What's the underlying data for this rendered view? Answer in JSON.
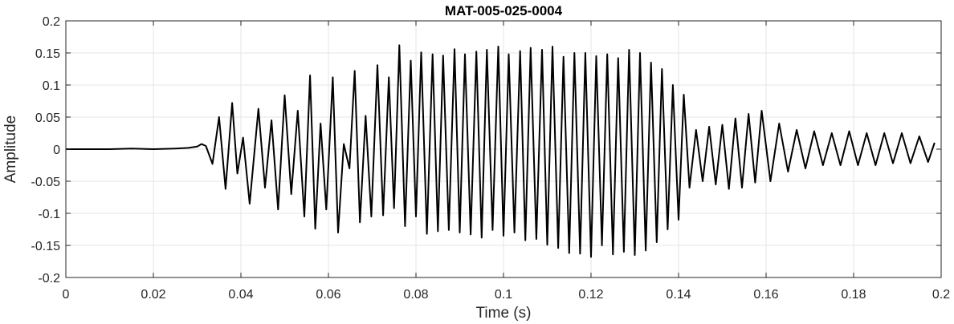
{
  "chart_data": {
    "type": "line",
    "title": "MAT-005-025-0004",
    "xlabel": "Time (s)",
    "ylabel": "Amplitude",
    "xlim": [
      0,
      0.2
    ],
    "ylim": [
      -0.2,
      0.2
    ],
    "grid": true,
    "xticks": [
      0,
      0.02,
      0.04,
      0.06,
      0.08,
      0.1,
      0.12,
      0.14,
      0.16,
      0.18,
      0.2
    ],
    "xtick_labels": [
      "0",
      "0.02",
      "0.04",
      "0.06",
      "0.08",
      "0.1",
      "0.12",
      "0.14",
      "0.16",
      "0.18",
      "0.2"
    ],
    "yticks": [
      0.2,
      0.15,
      0.1,
      0.05,
      0,
      -0.05,
      -0.1,
      -0.15,
      -0.2
    ],
    "ytick_labels": [
      "0.2",
      "0.15",
      "0.1",
      "0.05",
      "0",
      "-0.05",
      "-0.1",
      "-0.15",
      "-0.2"
    ],
    "series": [
      {
        "color": "#000000",
        "x": [
          0,
          0.005,
          0.01,
          0.015,
          0.02,
          0.025,
          0.028,
          0.03,
          0.031,
          0.032,
          0.0335,
          0.035,
          0.0365,
          0.038,
          0.0392,
          0.0405,
          0.042,
          0.044,
          0.0455,
          0.047,
          0.0485,
          0.05,
          0.0515,
          0.053,
          0.0545,
          0.0558,
          0.057,
          0.0582,
          0.0595,
          0.061,
          0.0622,
          0.0635,
          0.0648,
          0.066,
          0.0672,
          0.0685,
          0.0698,
          0.0712,
          0.0725,
          0.0738,
          0.075,
          0.0762,
          0.0775,
          0.0788,
          0.08,
          0.0812,
          0.0825,
          0.0838,
          0.085,
          0.0862,
          0.0875,
          0.0888,
          0.09,
          0.0912,
          0.0925,
          0.0938,
          0.095,
          0.0962,
          0.0975,
          0.0988,
          0.1,
          0.1012,
          0.1025,
          0.1038,
          0.105,
          0.1062,
          0.1075,
          0.1088,
          0.11,
          0.1112,
          0.1125,
          0.1137,
          0.115,
          0.1162,
          0.1175,
          0.1187,
          0.12,
          0.1212,
          0.1225,
          0.1237,
          0.125,
          0.1262,
          0.1275,
          0.1287,
          0.13,
          0.1312,
          0.1325,
          0.1337,
          0.135,
          0.1362,
          0.1375,
          0.1387,
          0.14,
          0.1412,
          0.1425,
          0.144,
          0.1455,
          0.147,
          0.1485,
          0.15,
          0.1515,
          0.153,
          0.1545,
          0.156,
          0.1575,
          0.159,
          0.161,
          0.163,
          0.165,
          0.167,
          0.169,
          0.171,
          0.173,
          0.175,
          0.177,
          0.179,
          0.181,
          0.183,
          0.185,
          0.187,
          0.189,
          0.191,
          0.193,
          0.195,
          0.197,
          0.1985
        ],
        "y": [
          0,
          0,
          0,
          0.001,
          0,
          0.001,
          0.002,
          0.004,
          0.008,
          0.005,
          -0.023,
          0.05,
          -0.062,
          0.072,
          -0.038,
          0.018,
          -0.085,
          0.063,
          -0.06,
          0.045,
          -0.094,
          0.084,
          -0.07,
          0.06,
          -0.105,
          0.115,
          -0.124,
          0.04,
          -0.094,
          0.112,
          -0.13,
          0.008,
          -0.03,
          0.122,
          -0.114,
          0.052,
          -0.105,
          0.131,
          -0.103,
          0.112,
          -0.092,
          0.162,
          -0.12,
          0.138,
          -0.105,
          0.151,
          -0.132,
          0.148,
          -0.128,
          0.146,
          -0.126,
          0.156,
          -0.13,
          0.148,
          -0.133,
          0.152,
          -0.138,
          0.155,
          -0.126,
          0.16,
          -0.135,
          0.148,
          -0.13,
          0.153,
          -0.142,
          0.158,
          -0.14,
          0.155,
          -0.149,
          0.16,
          -0.154,
          0.144,
          -0.162,
          0.15,
          -0.163,
          0.15,
          -0.168,
          0.145,
          -0.15,
          0.148,
          -0.164,
          0.142,
          -0.16,
          0.155,
          -0.165,
          0.15,
          -0.158,
          0.135,
          -0.145,
          0.125,
          -0.125,
          0.1,
          -0.11,
          0.085,
          -0.06,
          0.03,
          -0.05,
          0.035,
          -0.055,
          0.038,
          -0.062,
          0.048,
          -0.06,
          0.055,
          -0.052,
          0.06,
          -0.05,
          0.04,
          -0.035,
          0.03,
          -0.03,
          0.028,
          -0.025,
          0.025,
          -0.025,
          0.028,
          -0.025,
          0.025,
          -0.025,
          0.025,
          -0.022,
          0.025,
          -0.022,
          0.02,
          -0.02,
          0.01
        ]
      }
    ]
  }
}
